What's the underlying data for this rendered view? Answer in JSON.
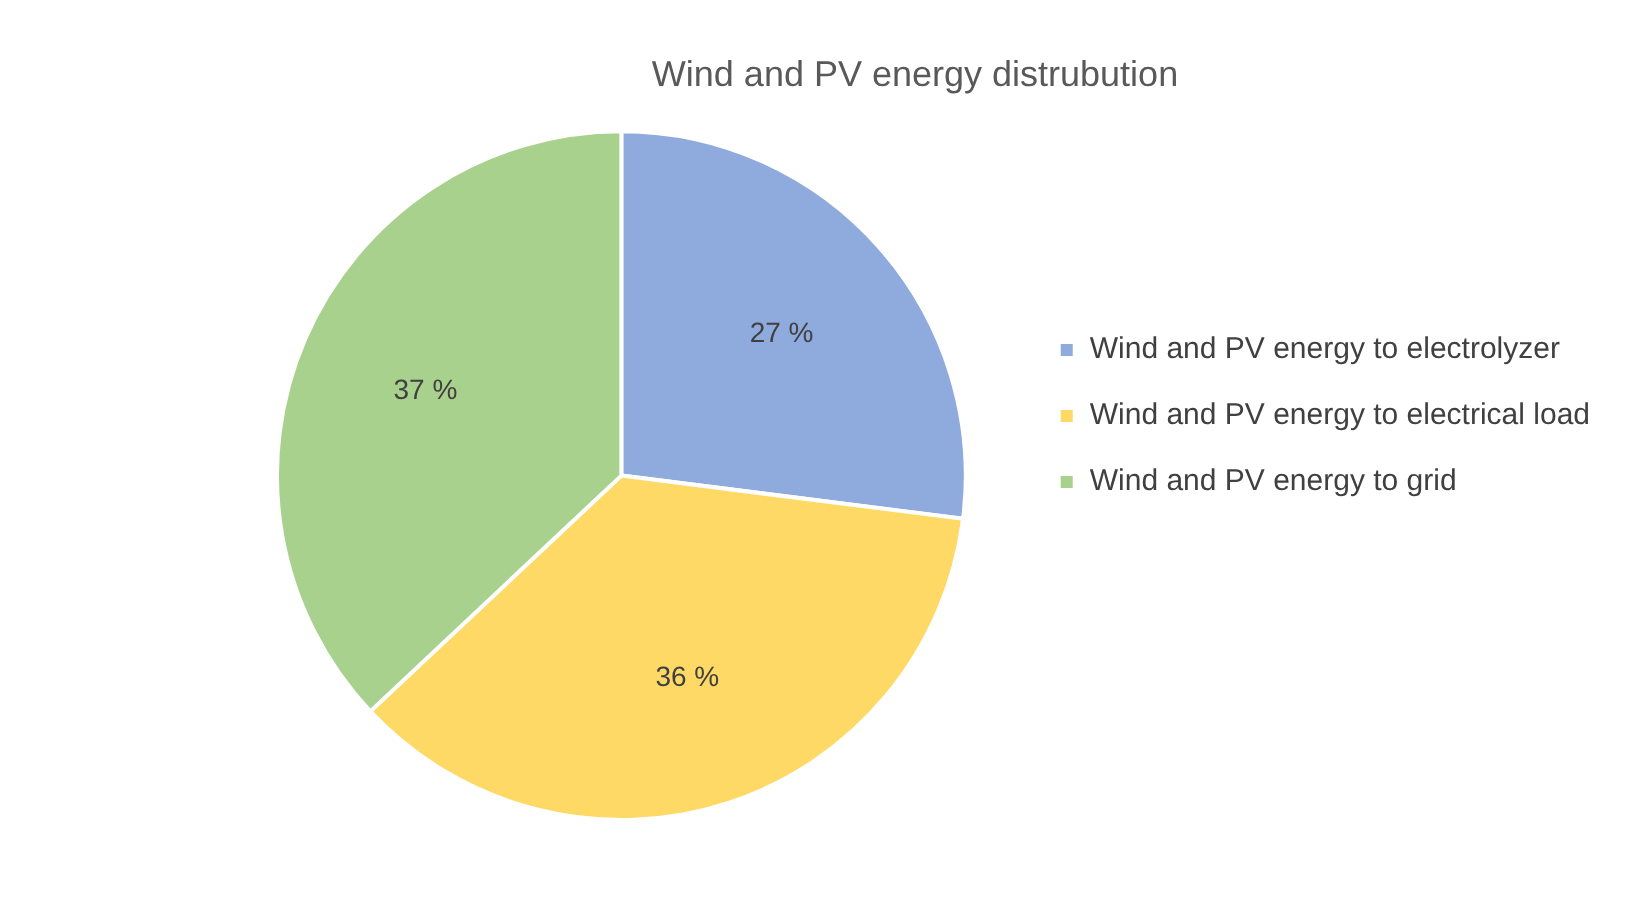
{
  "chart_data": {
    "type": "pie",
    "title": "Wind and PV energy distrubution",
    "categories": [
      "Wind and PV energy to electrolyzer",
      "Wind and PV energy to electrical load",
      "Wind and PV energy to grid"
    ],
    "values": [
      27,
      36,
      37
    ],
    "colors": [
      "#8faadc",
      "#ffd966",
      "#a9d18e"
    ],
    "value_labels": [
      "27 %",
      "36 %",
      "37 %"
    ],
    "legend": "right"
  }
}
